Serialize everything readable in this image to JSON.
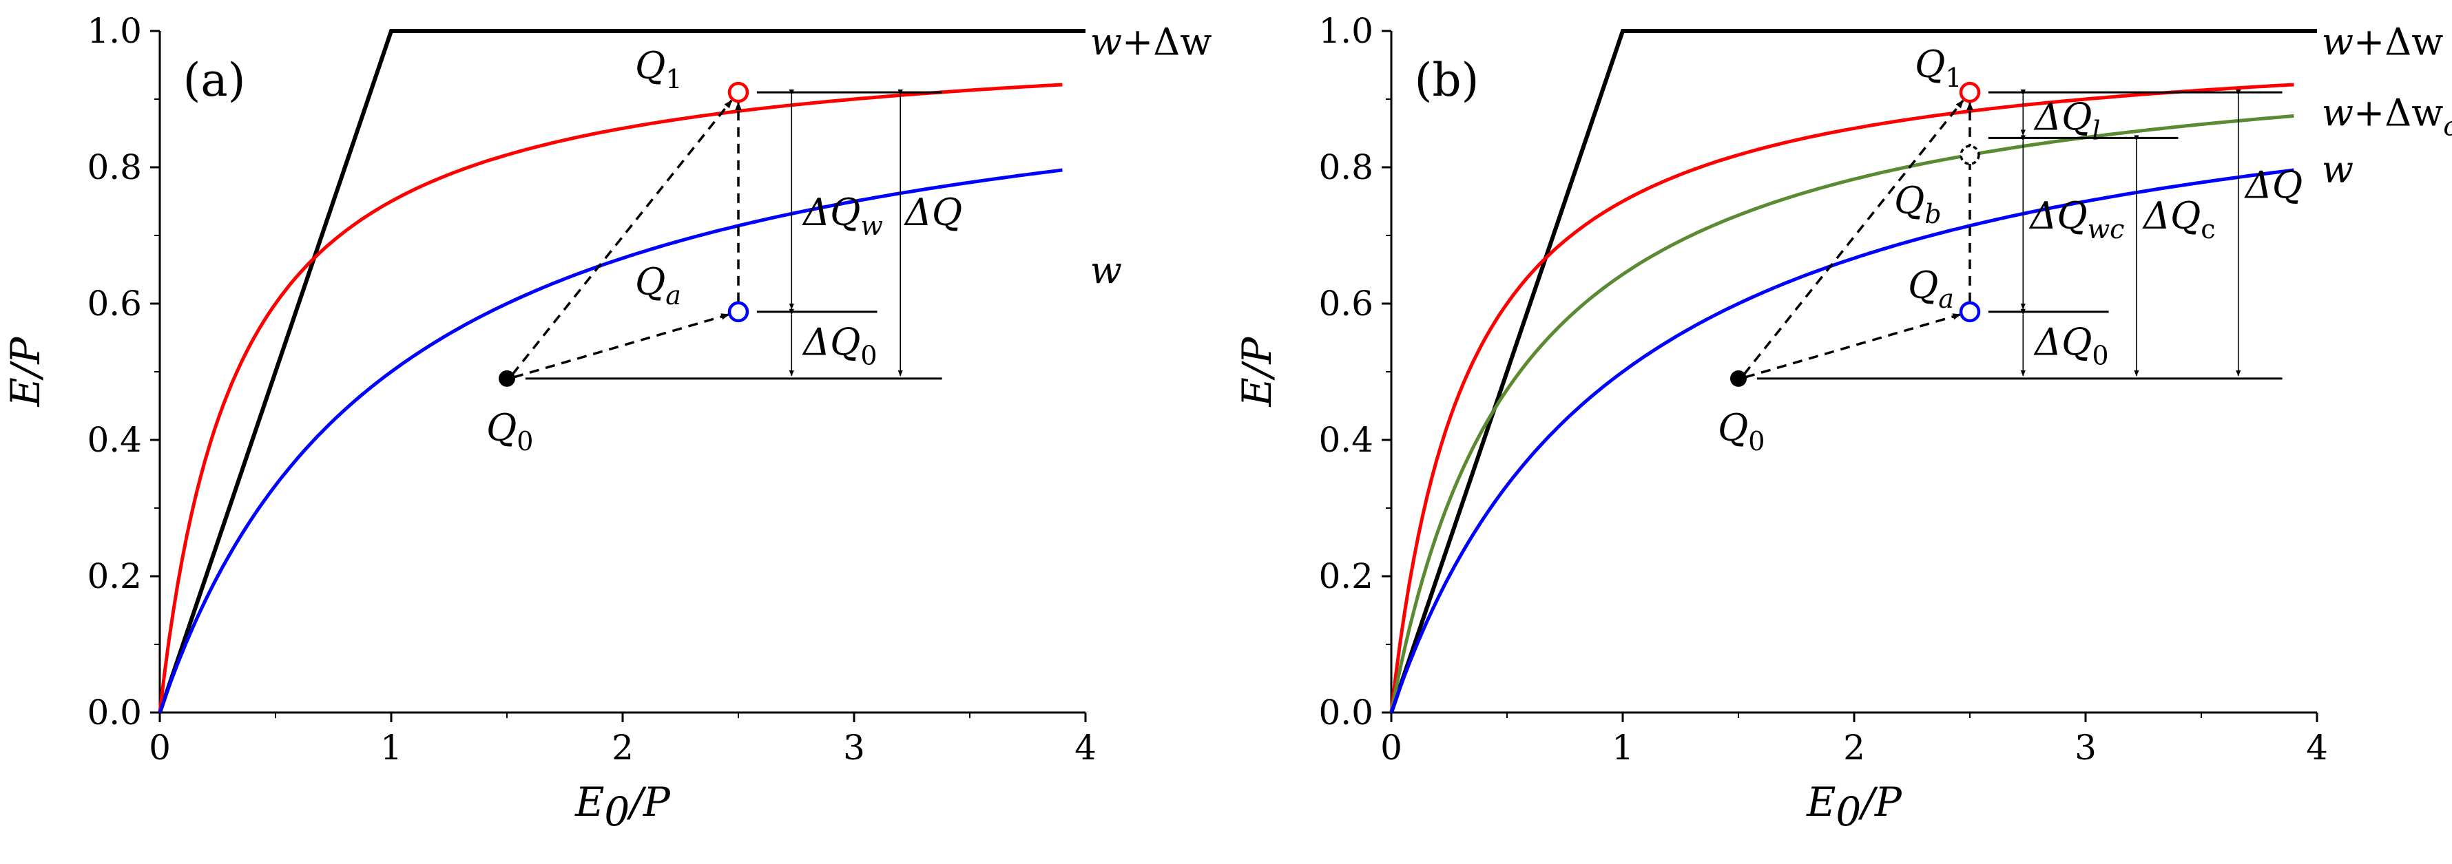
{
  "chart_data": [
    {
      "type": "line",
      "panel_label": "(a)",
      "xlabel": "E0/P",
      "xlabel_main": "E",
      "xlabel_sub": "0",
      "xlabel_rest": "/P",
      "ylabel": "E/P",
      "xlim": [
        0,
        4
      ],
      "ylim": [
        0,
        1.0
      ],
      "xticks": [
        "0",
        "1",
        "2",
        "3",
        "4"
      ],
      "yticks": [
        "0.0",
        "0.2",
        "0.4",
        "0.6",
        "0.8",
        "1.0"
      ],
      "series": [
        {
          "name": "bound",
          "color": "#000000",
          "x": [
            0,
            1,
            4
          ],
          "y": [
            0,
            1,
            1
          ]
        },
        {
          "name": "w+Δw",
          "color": "#ff0000",
          "curve_k": 3.0,
          "x_end": 3.9,
          "label_main": "w",
          "label_rest": "+Δw",
          "label_sub": ""
        },
        {
          "name": "w",
          "color": "#0000ff",
          "curve_k": 1.0,
          "x_end": 3.9,
          "label_main": "w",
          "label_rest": "",
          "label_sub": ""
        }
      ],
      "points": [
        {
          "name": "Q0",
          "main": "Q",
          "sub": "0",
          "x": 1.5,
          "y": 0.49,
          "style": "filled",
          "color": "#000000"
        },
        {
          "name": "Qa",
          "main": "Q",
          "sub": "a",
          "x": 2.5,
          "y": 0.588,
          "style": "open",
          "color": "#0000ff"
        },
        {
          "name": "Q1",
          "main": "Q",
          "sub": "1",
          "x": 2.5,
          "y": 0.91,
          "style": "open",
          "color": "#ff0000"
        }
      ],
      "annotations": [
        {
          "main": "ΔQ",
          "sub": "w"
        },
        {
          "main": "ΔQ",
          "sub": ""
        },
        {
          "main": "ΔQ",
          "sub": "0"
        }
      ]
    },
    {
      "type": "line",
      "panel_label": "(b)",
      "xlabel": "E0/P",
      "xlabel_main": "E",
      "xlabel_sub": "0",
      "xlabel_rest": "/P",
      "ylabel": "E/P",
      "xlim": [
        0,
        4
      ],
      "ylim": [
        0,
        1.0
      ],
      "xticks": [
        "0",
        "1",
        "2",
        "3",
        "4"
      ],
      "yticks": [
        "0.0",
        "0.2",
        "0.4",
        "0.6",
        "0.8",
        "1.0"
      ],
      "series": [
        {
          "name": "bound",
          "color": "#000000",
          "x": [
            0,
            1,
            4
          ],
          "y": [
            0,
            1,
            1
          ]
        },
        {
          "name": "w+Δw",
          "color": "#ff0000",
          "curve_k": 3.0,
          "x_end": 3.9,
          "label_main": "w",
          "label_rest": "+Δw",
          "label_sub": ""
        },
        {
          "name": "w+Δwc",
          "color": "#5a8a32",
          "curve_k": 1.8,
          "x_end": 3.9,
          "label_main": "w",
          "label_rest": "+Δw",
          "label_sub": "c"
        },
        {
          "name": "w",
          "color": "#0000ff",
          "curve_k": 1.0,
          "x_end": 3.9,
          "label_main": "w",
          "label_rest": "",
          "label_sub": ""
        }
      ],
      "points": [
        {
          "name": "Q0",
          "main": "Q",
          "sub": "0",
          "x": 1.5,
          "y": 0.49,
          "style": "filled",
          "color": "#000000"
        },
        {
          "name": "Qa",
          "main": "Q",
          "sub": "a",
          "x": 2.5,
          "y": 0.588,
          "style": "open",
          "color": "#0000ff"
        },
        {
          "name": "Qb",
          "main": "Q",
          "sub": "b",
          "x": 2.5,
          "y": 0.818,
          "style": "open-dashed",
          "color": "#000000"
        },
        {
          "name": "Q1",
          "main": "Q",
          "sub": "1",
          "x": 2.5,
          "y": 0.91,
          "style": "open",
          "color": "#ff0000"
        }
      ],
      "annotations": [
        {
          "main": "ΔQ",
          "sub": "l"
        },
        {
          "main": "ΔQ",
          "sub": "wc"
        },
        {
          "main": "ΔQ",
          "sub": "c"
        },
        {
          "main": "ΔQ",
          "sub": ""
        },
        {
          "main": "ΔQ",
          "sub": "0"
        }
      ]
    }
  ]
}
